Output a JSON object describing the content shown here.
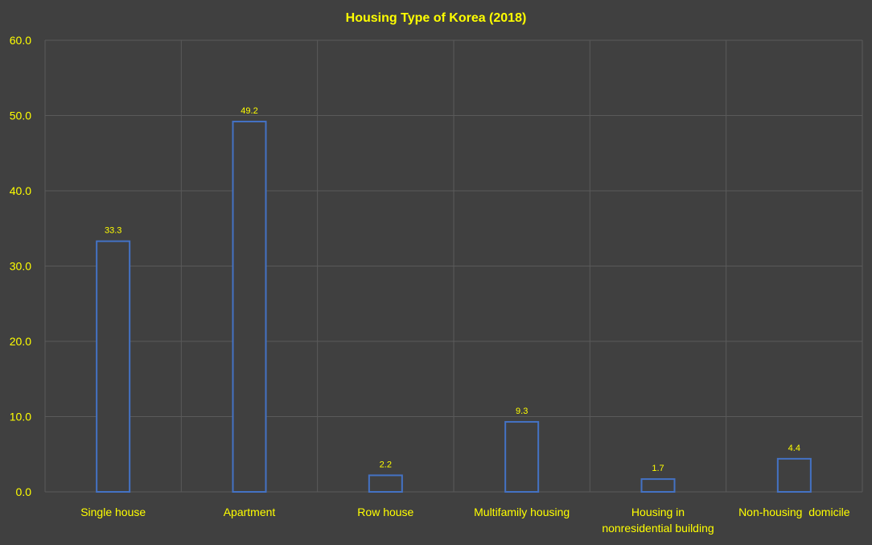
{
  "chart_data": {
    "type": "bar",
    "title": "Housing Type of Korea (2018)",
    "xlabel": "",
    "ylabel": "",
    "ylim": [
      0,
      60
    ],
    "yticks": [
      "0.0",
      "10.0",
      "20.0",
      "30.0",
      "40.0",
      "50.0",
      "60.0"
    ],
    "categories": [
      "Single house",
      "Apartment",
      "Row house",
      "Multifamily housing",
      "Housing in nonresidential building",
      "Non-housing  domicile"
    ],
    "values": [
      33.3,
      49.2,
      2.2,
      9.3,
      1.7,
      4.4
    ],
    "data_labels": [
      "33.3",
      "49.2",
      "2.2",
      "9.3",
      "1.7",
      "4.4"
    ],
    "grid": true,
    "legend": "none",
    "colors": {
      "background": "#404040",
      "bar_stroke": "#4472C4",
      "bar_fill": "#404040",
      "text": "#FFFF00",
      "grid": "#5A5A5A"
    }
  }
}
